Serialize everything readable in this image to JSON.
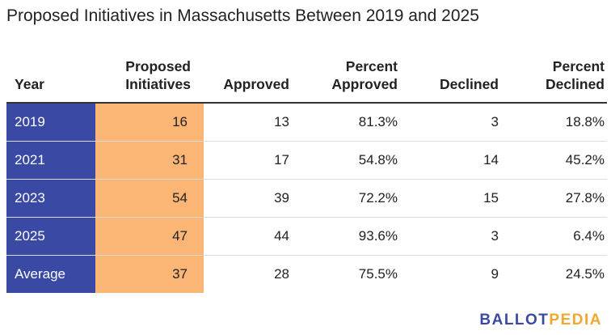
{
  "title": "Proposed Initiatives in Massachusetts Between 2019 and 2025",
  "colors": {
    "year_column": "#3a4aa4",
    "proposed_column": "#fbb676",
    "logo_ballot": "#3a4aa4",
    "logo_pedia": "#f0a830"
  },
  "logo": {
    "part1": "BALLOT",
    "part2": "PEDIA"
  },
  "chart_data": {
    "type": "table",
    "title": "Proposed Initiatives in Massachusetts Between 2019 and 2025",
    "columns": [
      {
        "line1": "Year",
        "line2": ""
      },
      {
        "line1": "Proposed",
        "line2": "Initiatives"
      },
      {
        "line1": "Approved",
        "line2": ""
      },
      {
        "line1": "Percent",
        "line2": "Approved"
      },
      {
        "line1": "Declined",
        "line2": ""
      },
      {
        "line1": "Percent",
        "line2": "Declined"
      }
    ],
    "rows": [
      [
        "2019",
        "16",
        "13",
        "81.3%",
        "3",
        "18.8%"
      ],
      [
        "2021",
        "31",
        "17",
        "54.8%",
        "14",
        "45.2%"
      ],
      [
        "2023",
        "54",
        "39",
        "72.2%",
        "15",
        "27.8%"
      ],
      [
        "2025",
        "47",
        "44",
        "93.6%",
        "3",
        "6.4%"
      ],
      [
        "Average",
        "37",
        "28",
        "75.5%",
        "9",
        "24.5%"
      ]
    ]
  }
}
